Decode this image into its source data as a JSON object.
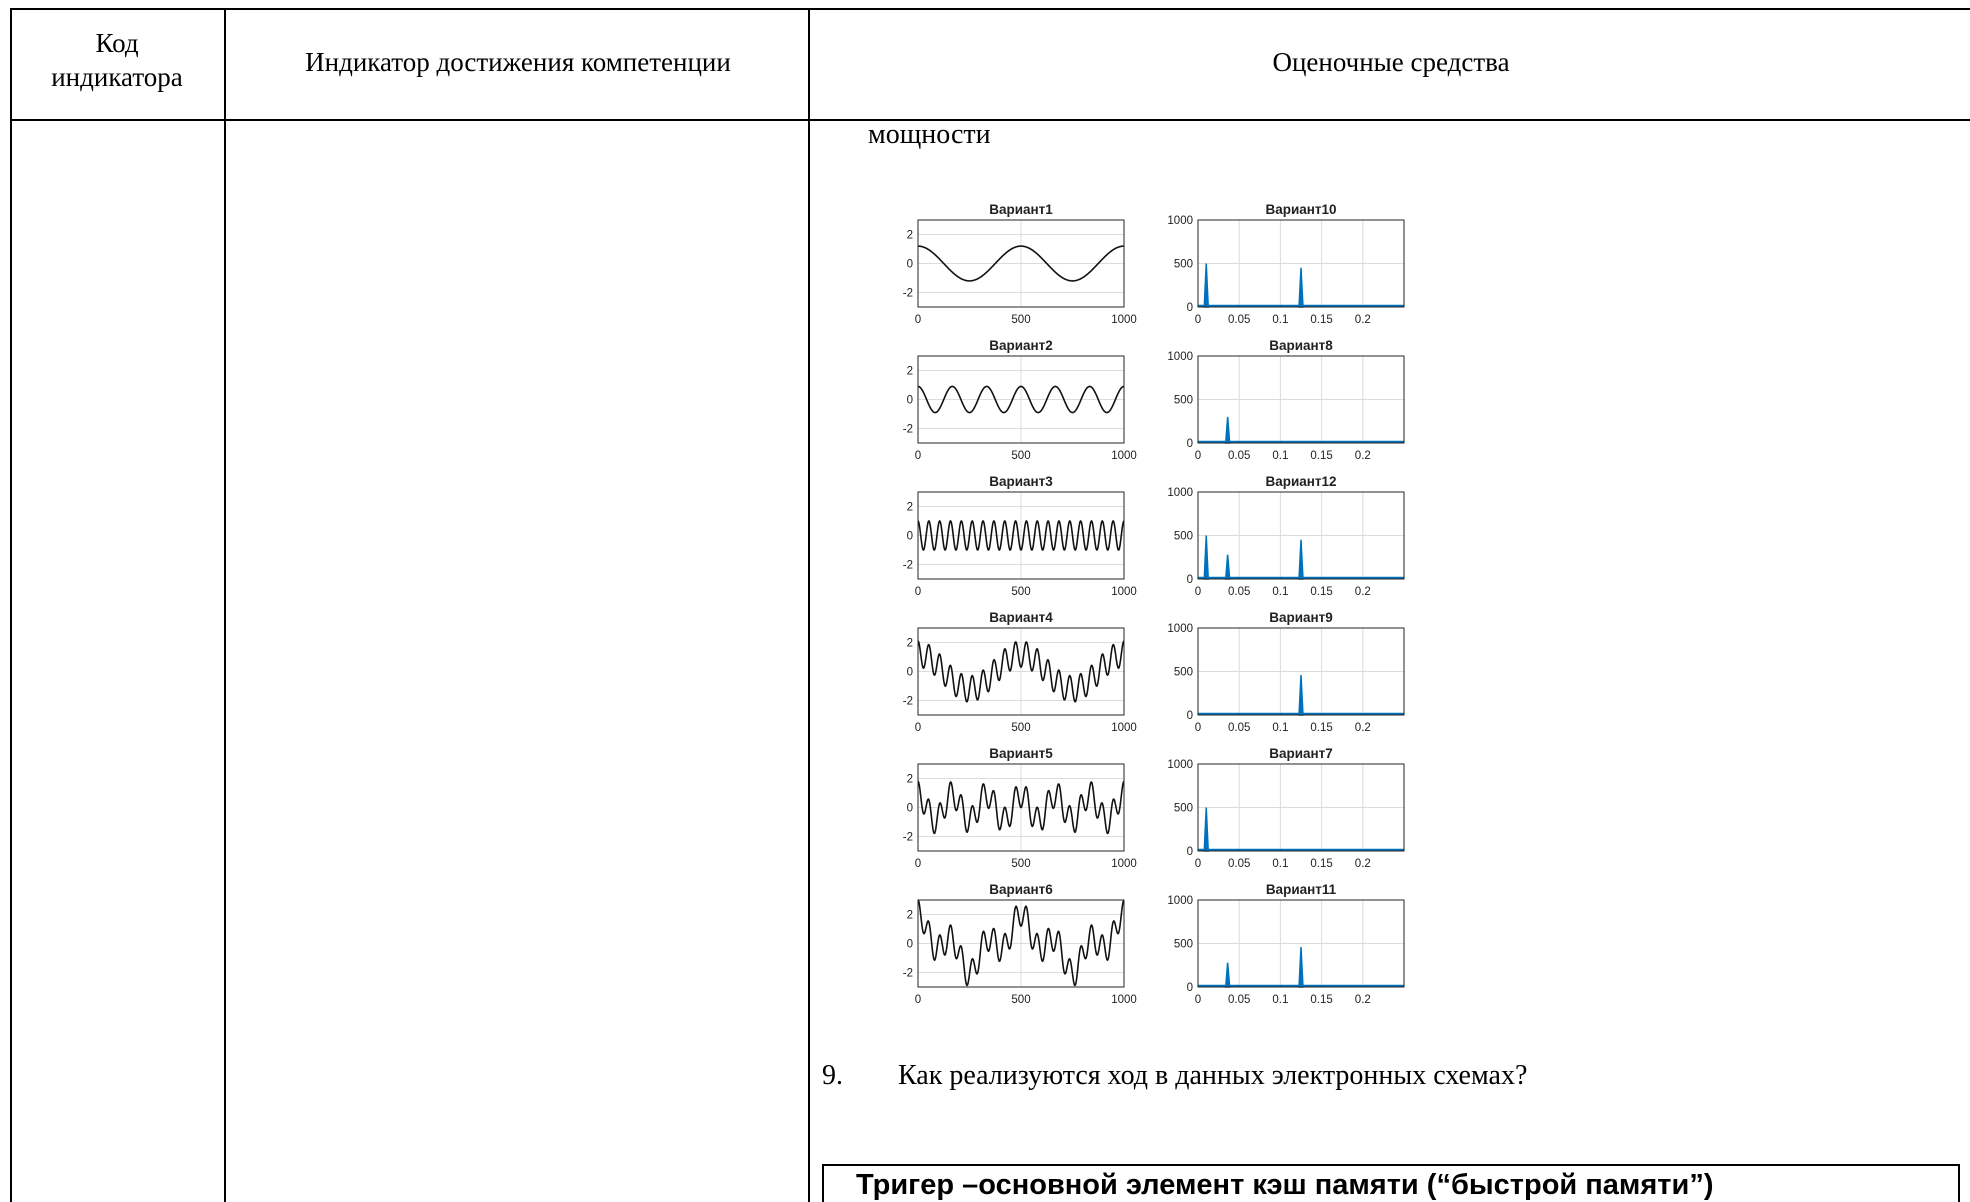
{
  "table": {
    "header": {
      "code_line1": "Код",
      "code_line2": "индикатора",
      "indicator": "Индикатор достижения компетенции",
      "evaluation": "Оценочные средства"
    }
  },
  "content": {
    "intro_word": "мощности",
    "question_number": "9.",
    "question_text": "Как реализуются ход в данных электронных схемах?",
    "answer_text": "Тригер –основной элемент кэш памяти (“быстрой памяти”)"
  },
  "colors": {
    "time_line": "#111111",
    "spectrum_line": "#0072BD",
    "grid": "#dcdcdc"
  },
  "chart_data": [
    {
      "type": "line",
      "title": "Вариант1",
      "x": [
        0,
        1000
      ],
      "xlim": [
        0,
        1000
      ],
      "ylim": [
        -3,
        3
      ],
      "xticks": [
        "0",
        "500",
        "1000"
      ],
      "yticks": [
        "2",
        "0",
        "-2"
      ],
      "components": [
        {
          "amplitude": 1.2,
          "cycles": 2,
          "cos": true
        }
      ]
    },
    {
      "type": "line",
      "title": "Вариант10",
      "xlim": [
        0,
        0.25
      ],
      "ylim": [
        0,
        1000
      ],
      "xticks": [
        "0",
        "0.05",
        "0.1",
        "0.15",
        "0.2"
      ],
      "yticks": [
        "1000",
        "500",
        "0"
      ],
      "peaks": [
        {
          "x": 0.01,
          "y": 500
        },
        {
          "x": 0.125,
          "y": 450
        }
      ]
    },
    {
      "type": "line",
      "title": "Вариант2",
      "x": [
        0,
        1000
      ],
      "xlim": [
        0,
        1000
      ],
      "ylim": [
        -3,
        3
      ],
      "xticks": [
        "0",
        "500",
        "1000"
      ],
      "yticks": [
        "2",
        "0",
        "-2"
      ],
      "components": [
        {
          "amplitude": 0.9,
          "cycles": 6,
          "cos": true
        }
      ]
    },
    {
      "type": "line",
      "title": "Вариант8",
      "xlim": [
        0,
        0.25
      ],
      "ylim": [
        0,
        1000
      ],
      "xticks": [
        "0",
        "0.05",
        "0.1",
        "0.15",
        "0.2"
      ],
      "yticks": [
        "1000",
        "500",
        "0"
      ],
      "peaks": [
        {
          "x": 0.036,
          "y": 300
        }
      ]
    },
    {
      "type": "line",
      "title": "Вариант3",
      "x": [
        0,
        1000
      ],
      "xlim": [
        0,
        1000
      ],
      "ylim": [
        -3,
        3
      ],
      "xticks": [
        "0",
        "500",
        "1000"
      ],
      "yticks": [
        "2",
        "0",
        "-2"
      ],
      "components": [
        {
          "amplitude": 1.0,
          "cycles": 19,
          "cos": true
        }
      ]
    },
    {
      "type": "line",
      "title": "Вариант12",
      "xlim": [
        0,
        0.25
      ],
      "ylim": [
        0,
        1000
      ],
      "xticks": [
        "0",
        "0.05",
        "0.1",
        "0.15",
        "0.2"
      ],
      "yticks": [
        "1000",
        "500",
        "0"
      ],
      "peaks": [
        {
          "x": 0.01,
          "y": 500
        },
        {
          "x": 0.036,
          "y": 280
        },
        {
          "x": 0.125,
          "y": 450
        }
      ]
    },
    {
      "type": "line",
      "title": "Вариант4",
      "x": [
        0,
        1000
      ],
      "xlim": [
        0,
        1000
      ],
      "ylim": [
        -3,
        3
      ],
      "xticks": [
        "0",
        "500",
        "1000"
      ],
      "yticks": [
        "2",
        "0",
        "-2"
      ],
      "components": [
        {
          "amplitude": 1.2,
          "cycles": 2,
          "cos": true
        },
        {
          "amplitude": 0.9,
          "cycles": 19,
          "cos": true
        }
      ]
    },
    {
      "type": "line",
      "title": "Вариант9",
      "xlim": [
        0,
        0.25
      ],
      "ylim": [
        0,
        1000
      ],
      "xticks": [
        "0",
        "0.05",
        "0.1",
        "0.15",
        "0.2"
      ],
      "yticks": [
        "1000",
        "500",
        "0"
      ],
      "peaks": [
        {
          "x": 0.125,
          "y": 460
        }
      ]
    },
    {
      "type": "line",
      "title": "Вариант5",
      "x": [
        0,
        1000
      ],
      "xlim": [
        0,
        1000
      ],
      "ylim": [
        -3,
        3
      ],
      "xticks": [
        "0",
        "500",
        "1000"
      ],
      "yticks": [
        "2",
        "0",
        "-2"
      ],
      "components": [
        {
          "amplitude": 0.9,
          "cycles": 6,
          "cos": true
        },
        {
          "amplitude": 0.9,
          "cycles": 19,
          "cos": true
        }
      ]
    },
    {
      "type": "line",
      "title": "Вариант7",
      "xlim": [
        0,
        0.25
      ],
      "ylim": [
        0,
        1000
      ],
      "xticks": [
        "0",
        "0.05",
        "0.1",
        "0.15",
        "0.2"
      ],
      "yticks": [
        "1000",
        "500",
        "0"
      ],
      "peaks": [
        {
          "x": 0.01,
          "y": 500
        }
      ]
    },
    {
      "type": "line",
      "title": "Вариант6",
      "x": [
        0,
        1000
      ],
      "xlim": [
        0,
        1000
      ],
      "ylim": [
        -3,
        3
      ],
      "xticks": [
        "0",
        "500",
        "1000"
      ],
      "yticks": [
        "2",
        "0",
        "-2"
      ],
      "components": [
        {
          "amplitude": 1.2,
          "cycles": 2,
          "cos": true
        },
        {
          "amplitude": 0.9,
          "cycles": 6,
          "cos": true
        },
        {
          "amplitude": 0.9,
          "cycles": 19,
          "cos": true
        }
      ]
    },
    {
      "type": "line",
      "title": "Вариант11",
      "xlim": [
        0,
        0.25
      ],
      "ylim": [
        0,
        1000
      ],
      "xticks": [
        "0",
        "0.05",
        "0.1",
        "0.15",
        "0.2"
      ],
      "yticks": [
        "1000",
        "500",
        "0"
      ],
      "peaks": [
        {
          "x": 0.036,
          "y": 280
        },
        {
          "x": 0.125,
          "y": 460
        }
      ]
    }
  ]
}
